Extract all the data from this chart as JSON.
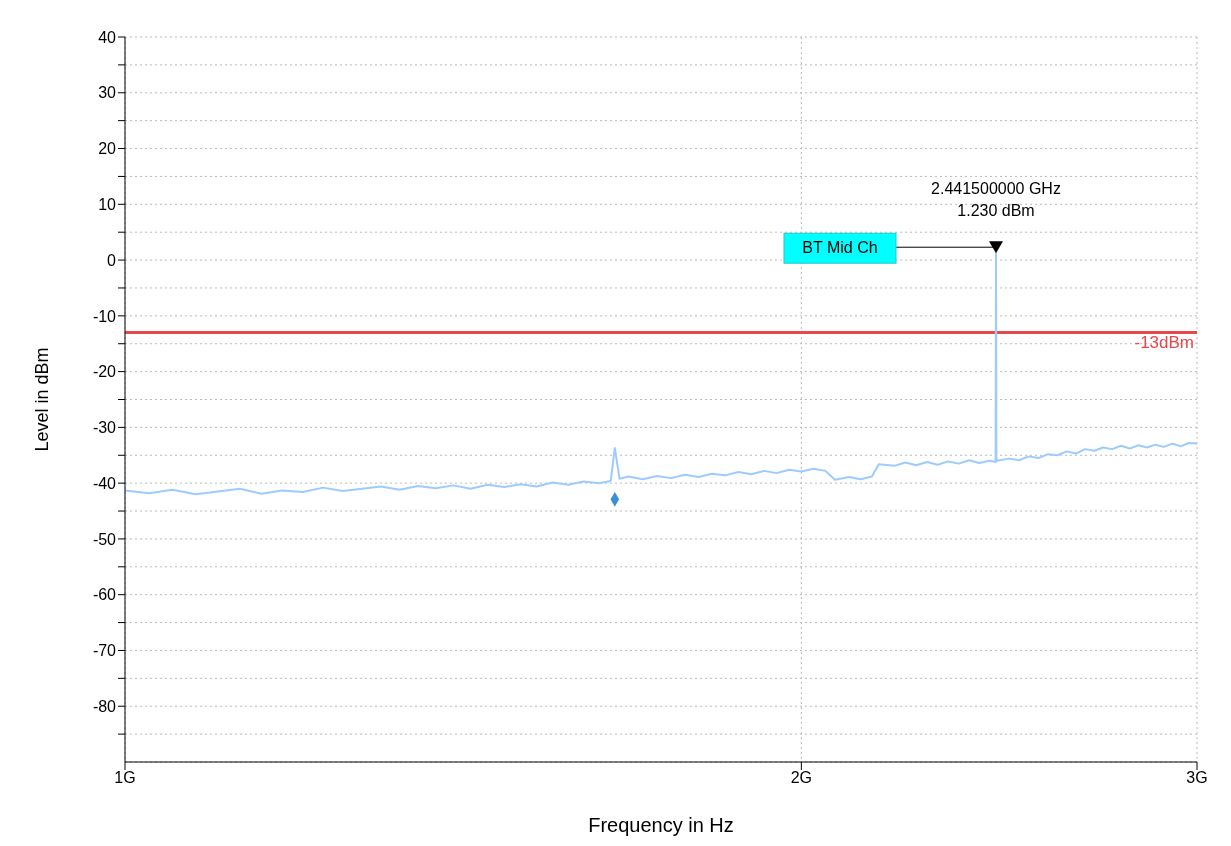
{
  "chart_data": {
    "type": "line",
    "xlabel": "Frequency in Hz",
    "ylabel": "Level in dBm",
    "log": "x",
    "grid": true,
    "legend": false,
    "xlim": [
      1,
      3
    ],
    "xticks": [
      {
        "value": 1,
        "label": "1G"
      },
      {
        "value": 2,
        "label": "2G"
      },
      {
        "value": 3,
        "label": "3G"
      }
    ],
    "ylim": [
      -90,
      40
    ],
    "yticks": [
      {
        "value": -85,
        "label": null
      },
      -80,
      {
        "value": -75,
        "label": null
      },
      -70,
      {
        "value": -65,
        "label": null
      },
      -60,
      {
        "value": -55,
        "label": null
      },
      -50,
      {
        "value": -45,
        "label": null
      },
      -40,
      {
        "value": -35,
        "label": null
      },
      -30,
      {
        "value": -25,
        "label": null
      },
      -20,
      {
        "value": -15,
        "label": null
      },
      -10,
      {
        "value": -5,
        "label": null
      },
      0,
      {
        "value": 5,
        "label": null
      },
      10,
      {
        "value": 15,
        "label": null
      },
      20,
      {
        "value": 25,
        "label": null
      },
      30,
      {
        "value": 35,
        "label": null
      },
      40
    ],
    "series": [
      {
        "color": "#9ecbff",
        "marker": "none",
        "x": [
          1,
          1.025,
          1.05,
          1.075,
          1.1,
          1.125,
          1.15,
          1.175,
          1.2,
          1.225,
          1.25,
          1.275,
          1.3,
          1.325,
          1.35,
          1.375,
          1.4,
          1.425,
          1.45,
          1.475,
          1.5,
          1.525,
          1.55,
          1.575,
          1.6,
          1.625,
          1.645,
          1.652,
          1.66,
          1.675,
          1.7,
          1.725,
          1.75,
          1.775,
          1.8,
          1.825,
          1.85,
          1.875,
          1.9,
          1.925,
          1.95,
          1.975,
          2,
          2.025,
          2.05,
          2.07,
          2.1,
          2.125,
          2.15,
          2.165,
          2.2,
          2.225,
          2.25,
          2.275,
          2.3,
          2.325,
          2.35,
          2.375,
          2.4,
          2.425,
          2.4405,
          2.4415,
          2.4425,
          2.475,
          2.5,
          2.525,
          2.55,
          2.575,
          2.6,
          2.625,
          2.65,
          2.675,
          2.7,
          2.725,
          2.75,
          2.775,
          2.8,
          2.825,
          2.85,
          2.875,
          2.9,
          2.925,
          2.95,
          2.975,
          3
        ],
        "values": [
          -41.3,
          -41.8,
          -41.2,
          -42.0,
          -41.5,
          -41.0,
          -41.9,
          -41.3,
          -41.6,
          -40.8,
          -41.4,
          -41.0,
          -40.6,
          -41.2,
          -40.5,
          -40.9,
          -40.4,
          -41.0,
          -40.3,
          -40.7,
          -40.2,
          -40.6,
          -39.9,
          -40.3,
          -39.7,
          -40.0,
          -39.6,
          -33.7,
          -39.2,
          -38.8,
          -39.3,
          -38.7,
          -39.1,
          -38.5,
          -38.9,
          -38.3,
          -38.6,
          -38.0,
          -38.4,
          -37.8,
          -38.2,
          -37.6,
          -37.9,
          -37.4,
          -37.8,
          -39.4,
          -38.9,
          -39.3,
          -38.8,
          -36.6,
          -36.9,
          -36.3,
          -36.8,
          -36.2,
          -36.7,
          -36.1,
          -36.5,
          -35.9,
          -36.4,
          -36.0,
          -36.2,
          1.23,
          -36.0,
          -35.6,
          -35.9,
          -35.2,
          -35.5,
          -34.8,
          -35.0,
          -34.3,
          -34.7,
          -33.9,
          -34.2,
          -33.6,
          -33.9,
          -33.3,
          -33.8,
          -33.2,
          -33.6,
          -33.1,
          -33.5,
          -32.9,
          -33.4,
          -32.8,
          -32.9
        ]
      },
      {
        "type": "scatter",
        "color": "#3b8fd9",
        "marker": "diamond",
        "x": [
          1.652
        ],
        "values": [
          -42.9
        ]
      }
    ],
    "ref_lines": [
      {
        "axis": "y",
        "value": -13,
        "label": "-13dBm",
        "color": "#e8474c"
      }
    ],
    "annotations": [
      "2.441500000 GHz",
      "1.230 dBm",
      {
        "text": "BT Mid Ch",
        "x": 2.4415,
        "y": 1.23
      }
    ]
  }
}
